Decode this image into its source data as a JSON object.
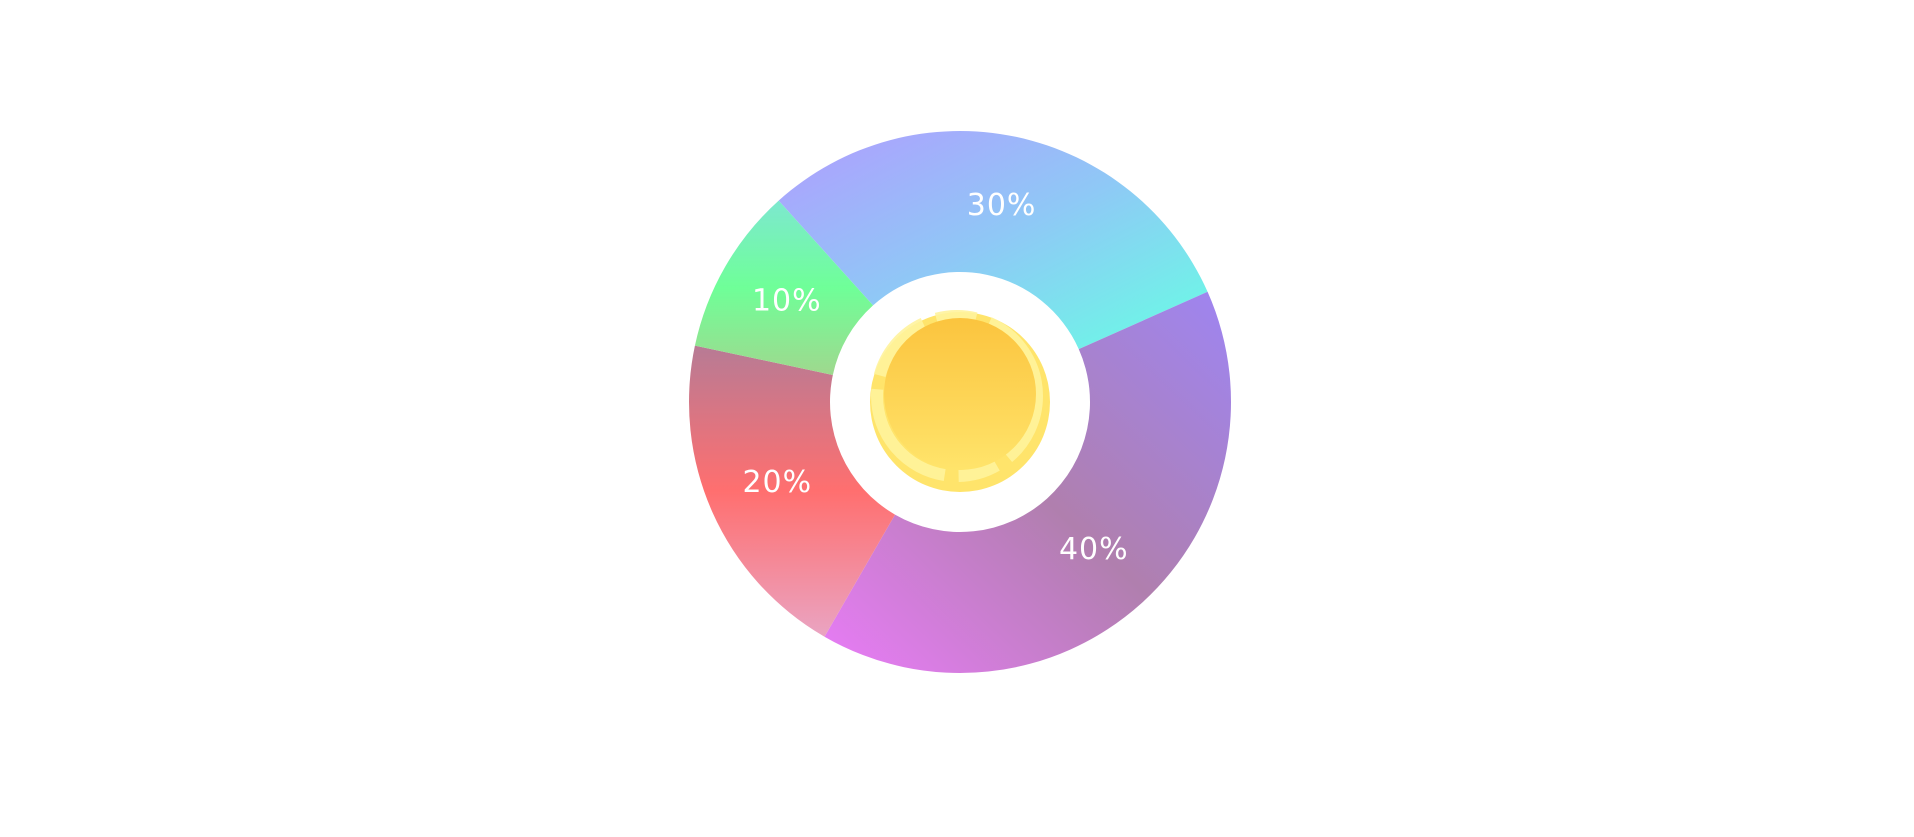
{
  "chart_data": {
    "type": "pie",
    "variant": "donut",
    "title": "",
    "legend": "none",
    "center_icon": "coin-icon",
    "slices": [
      {
        "label": "30%",
        "value": 30,
        "colors": [
          "#b19cff",
          "#8fc8f6",
          "#67ffe4"
        ]
      },
      {
        "label": "40%",
        "value": 40,
        "colors": [
          "#9e85f2",
          "#b07fae",
          "#e97cf8"
        ]
      },
      {
        "label": "20%",
        "value": 20,
        "colors": [
          "#b77b95",
          "#ff6f6f",
          "#eaa4c2"
        ]
      },
      {
        "label": "10%",
        "value": 10,
        "colors": [
          "#7de8cf",
          "#6fff98",
          "#9fd88e"
        ]
      }
    ],
    "coin_colors": [
      "#fbc43e",
      "#ffe46b",
      "#fff39c"
    ]
  }
}
